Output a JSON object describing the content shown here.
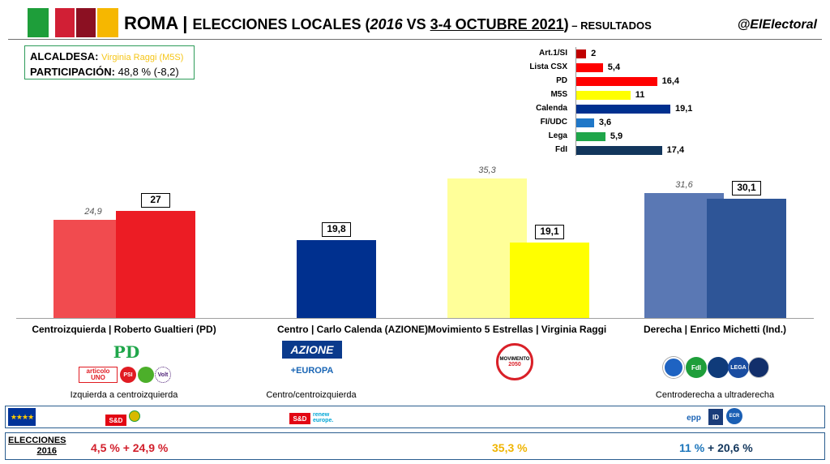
{
  "colors": {
    "flag": [
      "#1e9e3a",
      "#ffffff",
      "#d11f35",
      "#8b1022",
      "#f6b700"
    ],
    "csx_2016": "#f14b4f",
    "csx_2021": "#ec1c24",
    "centro_2021": "#00308f",
    "m5s_2016": "#ffff99",
    "m5s_2021": "#ffff00",
    "dcha_2016": "#5a78b4",
    "dcha_2021": "#2e5597"
  },
  "header": {
    "city": "ROMA",
    "title_prefix": "ELECCIONES LOCALES (",
    "year_old": "2016",
    "title_vs": " VS ",
    "date_new": "3-4 OCTUBRE 2021",
    "title_close": ")",
    "title_suffix": " – RESULTADOS",
    "handle": "@ElElectoral"
  },
  "info": {
    "mayor_label": "ALCALDESA:",
    "mayor_value": "Virginia Raggi (M5S)",
    "turnout_label": "PARTICIPACIÓN:",
    "turnout_value": "48,8 % (-8,2)"
  },
  "parties": [
    {
      "name": "Art.1/SI",
      "value": 2,
      "label": "2",
      "color": "#c00000"
    },
    {
      "name": "Lista CSX",
      "value": 5.4,
      "label": "5,4",
      "color": "#ff0000"
    },
    {
      "name": "PD",
      "value": 16.4,
      "label": "16,4",
      "color": "#ff0000"
    },
    {
      "name": "M5S",
      "value": 11,
      "label": "11",
      "color": "#ffff00"
    },
    {
      "name": "Calenda",
      "value": 19.1,
      "label": "19,1",
      "color": "#00308f"
    },
    {
      "name": "FI/UDC",
      "value": 3.6,
      "label": "3,6",
      "color": "#1f77c8"
    },
    {
      "name": "Lega",
      "value": 5.9,
      "label": "5,9",
      "color": "#1fa64a"
    },
    {
      "name": "FdI",
      "value": 17.4,
      "label": "17,4",
      "color": "#12365c"
    }
  ],
  "chart_data": [
    {
      "type": "bar",
      "categories": [
        "Centroizquierda | Roberto Gualtieri (PD)",
        "Centro | Carlo Calenda (AZIONE)",
        "Movimiento 5 Estrellas | Virginia Raggi",
        "Derecha | Enrico Michetti (Ind.)"
      ],
      "series": [
        {
          "values": [
            24.9,
            null,
            35.3,
            31.6
          ],
          "labels": [
            "24,9",
            "",
            "35,3",
            "31,6"
          ]
        },
        {
          "values": [
            27,
            19.8,
            19.1,
            30.1
          ],
          "labels": [
            "27",
            "19,8",
            "19,1",
            "30,1"
          ]
        }
      ],
      "ylim": [
        0,
        37
      ]
    },
    {
      "type": "bar",
      "orientation": "horizontal",
      "categories": [
        "Art.1/SI",
        "Lista CSX",
        "PD",
        "M5S",
        "Calenda",
        "FI/UDC",
        "Lega",
        "FdI"
      ],
      "values": [
        2,
        5.4,
        16.4,
        11,
        19.1,
        3.6,
        5.9,
        17.4
      ],
      "xlim": [
        0,
        20
      ]
    }
  ],
  "descriptions": [
    "Izquierda a centroizquierda",
    "Centro/centroizquierda",
    "",
    "Centroderecha a ultraderecha"
  ],
  "logos": {
    "pd": "PD",
    "articolo": "articolo UNO",
    "psi": "PSI",
    "volt": "Volt",
    "azione": "AZIONE",
    "europa": "+EUROPA",
    "m5s": "MOVIMENTO",
    "m5s_year": "2050",
    "lega": "LEGA",
    "fdi": "FdI",
    "eu_stars": "★★★★",
    "sd": "S&D",
    "renew": "renew europe.",
    "epp": "epp",
    "id": "ID",
    "ecr": "ECR"
  },
  "elections_2016": {
    "label_1": "ELECCIONES",
    "label_2": "2016",
    "csx": "4,5 % + 24,9 %",
    "m5s": "35,3 %",
    "dcha_a": "11 %",
    "dcha_b": " + 20,6 %"
  }
}
